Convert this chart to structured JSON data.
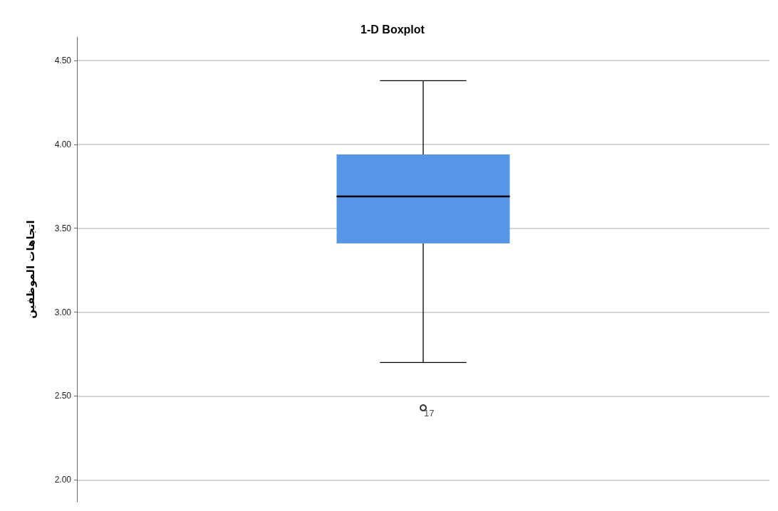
{
  "chart_data": {
    "type": "box",
    "title": "1-D Boxplot",
    "ylabel": "اتجاهات الموظفين",
    "categories": [
      null
    ],
    "series": [
      {
        "color": "#5596e6",
        "boxes": [
          {
            "low": 2.7,
            "q1": 3.41,
            "median": 3.69,
            "q3": 3.94,
            "high": 4.38,
            "outliers": [
              2.43
            ]
          }
        ]
      }
    ],
    "annotations": [
      "17"
    ],
    "ylim": [
      1.87,
      4.64
    ],
    "yticks": [
      {
        "value": 2,
        "label": "2.00"
      },
      {
        "value": 2.5,
        "label": "2.50"
      },
      {
        "value": 3,
        "label": "3.00"
      },
      {
        "value": 3.5,
        "label": "3.50"
      },
      {
        "value": 4,
        "label": "4.00"
      },
      {
        "value": 4.5,
        "label": "4.50"
      }
    ],
    "grid": "y",
    "marker": "circle"
  }
}
